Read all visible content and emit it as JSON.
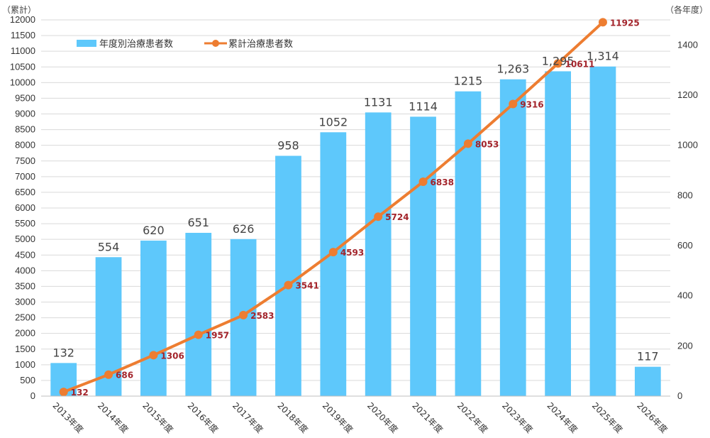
{
  "chart_data": {
    "type": "bar",
    "categories": [
      "2013年度",
      "2014年度",
      "2015年度",
      "2016年度",
      "2017年度",
      "2018年度",
      "2019年度",
      "2020年度",
      "2021年度",
      "2022年度",
      "2023年度",
      "2024年度",
      "2025年度",
      "2026年度"
    ],
    "series": [
      {
        "name": "年度別治療患者数",
        "type": "bar",
        "axis": "right",
        "color": "#5ec8fb",
        "values": [
          132,
          554,
          620,
          651,
          626,
          958,
          1052,
          1131,
          1114,
          1215,
          1263,
          1295,
          1314,
          117
        ],
        "labels": [
          "132",
          "554",
          "620",
          "651",
          "626",
          "958",
          "1052",
          "1131",
          "1114",
          "1215",
          "1,263",
          "1,295",
          "1,314",
          "117"
        ]
      },
      {
        "name": "累計治療患者数",
        "type": "line",
        "axis": "left",
        "color": "#ed7d31",
        "values": [
          132,
          686,
          1306,
          1957,
          2583,
          3541,
          4593,
          5724,
          6838,
          8053,
          9316,
          10611,
          11925,
          null
        ],
        "labels": [
          "132",
          "686",
          "1306",
          "1957",
          "2583",
          "3541",
          "4593",
          "5724",
          "6838",
          "8053",
          "9316",
          "10611",
          "11925",
          ""
        ]
      }
    ],
    "y_left": {
      "title": "（累計）",
      "ylim": [
        0,
        12000
      ],
      "ticks": [
        0,
        500,
        1000,
        1500,
        2000,
        2500,
        3000,
        3500,
        4000,
        4500,
        5000,
        5500,
        6000,
        6500,
        7000,
        7500,
        8000,
        8500,
        9000,
        9500,
        10000,
        10500,
        11000,
        11500,
        12000
      ]
    },
    "y_right": {
      "title": "（各年度）",
      "ylim": [
        0,
        1500
      ],
      "ticks": [
        0,
        200,
        400,
        600,
        800,
        1000,
        1200,
        1400
      ]
    },
    "grid": true,
    "legend_position": "top-left"
  }
}
